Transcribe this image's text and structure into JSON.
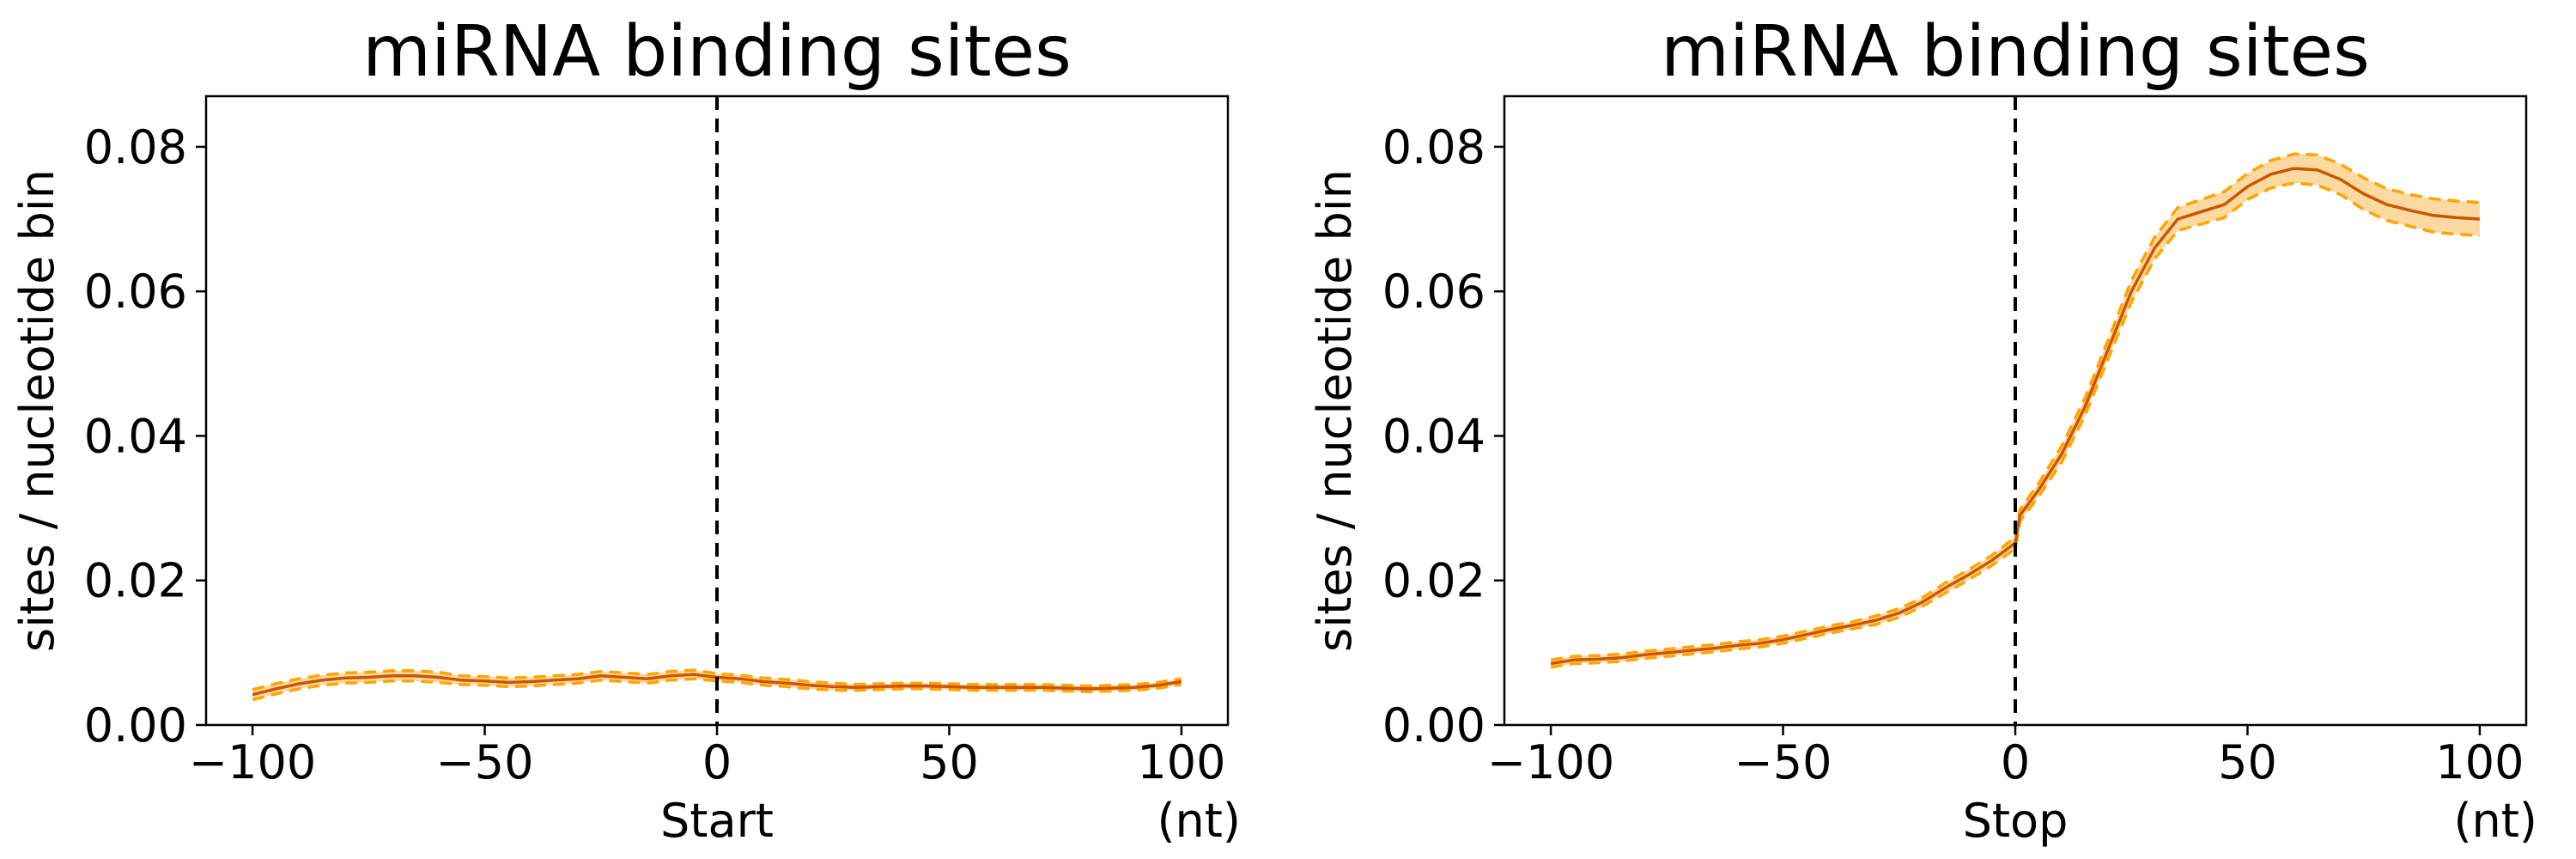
{
  "colors": {
    "band_fill": "#fbd9a0",
    "bound_line": "#ffa500",
    "mean_line": "#cc5500"
  },
  "chart_data": [
    {
      "type": "line",
      "title": "miRNA binding sites",
      "xlabel": "Start",
      "xunit": "(nt)",
      "ylabel": "sites / nucleotide bin",
      "xlim": [
        -110,
        110
      ],
      "ylim": [
        0,
        0.087
      ],
      "xticks": [
        -100,
        -50,
        0,
        50,
        100
      ],
      "xtick_labels": [
        "−100",
        "−50",
        "0",
        "50",
        "100"
      ],
      "yticks": [
        0,
        0.02,
        0.04,
        0.06,
        0.08
      ],
      "ytick_labels": [
        "0.00",
        "0.02",
        "0.04",
        "0.06",
        "0.08"
      ],
      "reference_x": 0,
      "grid": false,
      "x": [
        -100,
        -95,
        -90,
        -85,
        -80,
        -75,
        -70,
        -65,
        -60,
        -55,
        -50,
        -45,
        -40,
        -35,
        -30,
        -25,
        -20,
        -15,
        -10,
        -5,
        0,
        5,
        10,
        15,
        20,
        25,
        30,
        35,
        40,
        45,
        50,
        55,
        60,
        65,
        70,
        75,
        80,
        85,
        90,
        95,
        100
      ],
      "series": [
        {
          "mean": [
            0.0042,
            0.005,
            0.0057,
            0.0062,
            0.0065,
            0.0066,
            0.0068,
            0.0068,
            0.0066,
            0.0062,
            0.0061,
            0.0059,
            0.006,
            0.0062,
            0.0064,
            0.0068,
            0.0066,
            0.0064,
            0.0068,
            0.007,
            0.0066,
            0.0064,
            0.006,
            0.0058,
            0.0055,
            0.0053,
            0.0052,
            0.0053,
            0.0054,
            0.0054,
            0.0053,
            0.0052,
            0.0052,
            0.0052,
            0.0052,
            0.0051,
            0.005,
            0.0051,
            0.0052,
            0.0055,
            0.006
          ],
          "lower": [
            0.0035,
            0.0043,
            0.005,
            0.0055,
            0.0058,
            0.0059,
            0.0061,
            0.0061,
            0.0059,
            0.0056,
            0.0055,
            0.0053,
            0.0054,
            0.0056,
            0.0058,
            0.0062,
            0.006,
            0.0058,
            0.0062,
            0.0064,
            0.0061,
            0.0059,
            0.0055,
            0.0053,
            0.005,
            0.0048,
            0.0048,
            0.0049,
            0.005,
            0.005,
            0.0049,
            0.0048,
            0.0048,
            0.0048,
            0.0048,
            0.0047,
            0.0046,
            0.0047,
            0.0048,
            0.0051,
            0.0056
          ],
          "upper": [
            0.0049,
            0.0057,
            0.0064,
            0.0069,
            0.0072,
            0.0073,
            0.0075,
            0.0075,
            0.0073,
            0.0068,
            0.0067,
            0.0065,
            0.0066,
            0.0068,
            0.007,
            0.0074,
            0.0072,
            0.007,
            0.0074,
            0.0076,
            0.0071,
            0.0069,
            0.0065,
            0.0063,
            0.006,
            0.0058,
            0.0056,
            0.0057,
            0.0058,
            0.0058,
            0.0057,
            0.0056,
            0.0056,
            0.0056,
            0.0056,
            0.0055,
            0.0054,
            0.0055,
            0.0056,
            0.0059,
            0.0064
          ]
        }
      ]
    },
    {
      "type": "line",
      "title": "miRNA binding sites",
      "xlabel": "Stop",
      "xunit": "(nt)",
      "ylabel": "sites / nucleotide bin",
      "xlim": [
        -110,
        110
      ],
      "ylim": [
        0,
        0.087
      ],
      "xticks": [
        -100,
        -50,
        0,
        50,
        100
      ],
      "xtick_labels": [
        "−100",
        "−50",
        "0",
        "50",
        "100"
      ],
      "yticks": [
        0,
        0.02,
        0.04,
        0.06,
        0.08
      ],
      "ytick_labels": [
        "0.00",
        "0.02",
        "0.04",
        "0.06",
        "0.08"
      ],
      "reference_x": 0,
      "grid": false,
      "x": [
        -100,
        -95,
        -90,
        -85,
        -80,
        -75,
        -70,
        -65,
        -60,
        -55,
        -50,
        -45,
        -40,
        -35,
        -30,
        -25,
        -20,
        -15,
        -10,
        -5,
        0,
        1,
        5,
        10,
        15,
        20,
        25,
        30,
        35,
        40,
        45,
        50,
        55,
        60,
        65,
        70,
        75,
        80,
        85,
        90,
        95,
        100
      ],
      "series": [
        {
          "mean": [
            0.0085,
            0.009,
            0.0091,
            0.0093,
            0.0097,
            0.01,
            0.0103,
            0.0106,
            0.011,
            0.0113,
            0.0118,
            0.0125,
            0.0132,
            0.0138,
            0.0145,
            0.0155,
            0.017,
            0.019,
            0.0208,
            0.0228,
            0.0252,
            0.029,
            0.0325,
            0.0375,
            0.044,
            0.052,
            0.06,
            0.066,
            0.07,
            0.071,
            0.072,
            0.0745,
            0.0762,
            0.077,
            0.0768,
            0.0755,
            0.0735,
            0.072,
            0.0712,
            0.0705,
            0.0702,
            0.07
          ],
          "lower": [
            0.008,
            0.0085,
            0.0086,
            0.0088,
            0.0092,
            0.0095,
            0.0098,
            0.0101,
            0.0105,
            0.0108,
            0.0113,
            0.012,
            0.0127,
            0.0133,
            0.0139,
            0.0149,
            0.0164,
            0.0183,
            0.0201,
            0.0221,
            0.0244,
            0.0282,
            0.0316,
            0.0364,
            0.0428,
            0.0507,
            0.0585,
            0.0645,
            0.0684,
            0.0693,
            0.0702,
            0.0727,
            0.0743,
            0.075,
            0.0747,
            0.0734,
            0.0713,
            0.0698,
            0.069,
            0.0682,
            0.0679,
            0.0677
          ],
          "upper": [
            0.009,
            0.0095,
            0.0096,
            0.0098,
            0.0102,
            0.0105,
            0.0108,
            0.0111,
            0.0115,
            0.0118,
            0.0123,
            0.013,
            0.0137,
            0.0143,
            0.0151,
            0.0161,
            0.0176,
            0.0197,
            0.0215,
            0.0235,
            0.026,
            0.0298,
            0.0334,
            0.0386,
            0.0452,
            0.0533,
            0.0615,
            0.0675,
            0.0716,
            0.0727,
            0.0738,
            0.0763,
            0.0781,
            0.079,
            0.0789,
            0.0776,
            0.0757,
            0.0742,
            0.0734,
            0.0728,
            0.0725,
            0.0723
          ]
        }
      ]
    }
  ]
}
